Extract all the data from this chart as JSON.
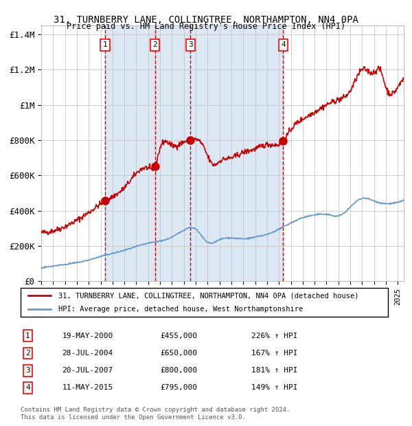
{
  "title": "31, TURNBERRY LANE, COLLINGTREE, NORTHAMPTON, NN4 0PA",
  "subtitle": "Price paid vs. HM Land Registry's House Price Index (HPI)",
  "xlim": [
    1995,
    2025.5
  ],
  "ylim": [
    0,
    1450000
  ],
  "yticks": [
    0,
    200000,
    400000,
    600000,
    800000,
    1000000,
    1200000,
    1400000
  ],
  "ytick_labels": [
    "£0",
    "£200K",
    "£400K",
    "£600K",
    "£800K",
    "£1M",
    "£1.2M",
    "£1.4M"
  ],
  "sale_points": [
    {
      "year": 2000.38,
      "price": 455000,
      "label": "1"
    },
    {
      "year": 2004.57,
      "price": 650000,
      "label": "2"
    },
    {
      "year": 2007.55,
      "price": 800000,
      "label": "3"
    },
    {
      "year": 2015.36,
      "price": 795000,
      "label": "4"
    }
  ],
  "table_entries": [
    {
      "num": "1",
      "date": "19-MAY-2000",
      "price": "£455,000",
      "hpi": "226% ↑ HPI"
    },
    {
      "num": "2",
      "date": "28-JUL-2004",
      "price": "£650,000",
      "hpi": "167% ↑ HPI"
    },
    {
      "num": "3",
      "date": "20-JUL-2007",
      "price": "£800,000",
      "hpi": "181% ↑ HPI"
    },
    {
      "num": "4",
      "date": "11-MAY-2015",
      "price": "£795,000",
      "hpi": "149% ↑ HPI"
    }
  ],
  "legend_line1": "31, TURNBERRY LANE, COLLINGTREE, NORTHAMPTON, NN4 0PA (detached house)",
  "legend_line2": "HPI: Average price, detached house, West Northamptonshire",
  "footnote": "Contains HM Land Registry data © Crown copyright and database right 2024.\nThis data is licensed under the Open Government Licence v3.0.",
  "red_color": "#cc0000",
  "blue_color": "#6699cc",
  "bg_color": "#dce9f5",
  "grid_color": "#bbbbbb",
  "dashed_color": "#cc0000"
}
